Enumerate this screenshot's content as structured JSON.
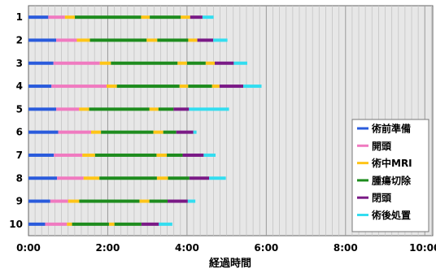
{
  "chart_data": {
    "type": "bar",
    "orientation": "horizontal-stacked",
    "xlabel": "経過時間",
    "xlim_hours": [
      0,
      10.2
    ],
    "x_ticks": [
      "0:00",
      "2:00",
      "4:00",
      "6:00",
      "8:00",
      "10:00"
    ],
    "x_tick_values_hours": [
      0,
      2,
      4,
      6,
      8,
      10
    ],
    "grid": "vertical lines every 10 minutes",
    "legend_position": "bottom-right",
    "categories": [
      "1",
      "2",
      "3",
      "4",
      "5",
      "6",
      "7",
      "8",
      "9",
      "10"
    ],
    "series": [
      {
        "name": "術前準備",
        "color": "#2a5bdc",
        "segments": [
          [
            [
              0.0,
              0.5
            ]
          ],
          [
            [
              0.0,
              0.7
            ]
          ],
          [
            [
              0.0,
              0.63
            ]
          ],
          [
            [
              0.0,
              0.58
            ]
          ],
          [
            [
              0.0,
              0.7
            ]
          ],
          [
            [
              0.0,
              0.75
            ]
          ],
          [
            [
              0.0,
              0.64
            ]
          ],
          [
            [
              0.0,
              0.72
            ]
          ],
          [
            [
              0.0,
              0.55
            ]
          ],
          [
            [
              0.0,
              0.42
            ]
          ]
        ]
      },
      {
        "name": "開頭",
        "color": "#f07ac0",
        "segments": [
          [
            [
              0.5,
              0.92
            ]
          ],
          [
            [
              0.7,
              1.22
            ]
          ],
          [
            [
              0.63,
              1.8
            ]
          ],
          [
            [
              0.58,
              1.97
            ]
          ],
          [
            [
              0.7,
              1.28
            ]
          ],
          [
            [
              0.75,
              1.58
            ]
          ],
          [
            [
              0.64,
              1.36
            ]
          ],
          [
            [
              0.72,
              1.39
            ]
          ],
          [
            [
              0.55,
              1.0
            ]
          ],
          [
            [
              0.42,
              0.97
            ]
          ]
        ]
      },
      {
        "name": "術中MRI",
        "color": "#ffc518",
        "segments": [
          [
            [
              0.92,
              1.17
            ],
            [
              2.84,
              3.06
            ],
            [
              3.84,
              4.08
            ]
          ],
          [
            [
              1.22,
              1.55
            ],
            [
              2.98,
              3.25
            ],
            [
              4.03,
              4.26
            ]
          ],
          [
            [
              1.8,
              2.08
            ],
            [
              3.76,
              4.0
            ],
            [
              4.47,
              4.7
            ]
          ],
          [
            [
              1.97,
              2.23
            ],
            [
              3.81,
              4.03
            ],
            [
              4.63,
              4.82
            ]
          ],
          [
            [
              1.28,
              1.53
            ],
            [
              3.05,
              3.28
            ]
          ],
          [
            [
              1.58,
              1.83
            ],
            [
              3.15,
              3.4
            ]
          ],
          [
            [
              1.36,
              1.68
            ],
            [
              3.23,
              3.49
            ]
          ],
          [
            [
              1.39,
              1.79
            ],
            [
              3.24,
              3.52
            ]
          ],
          [
            [
              1.0,
              1.28
            ],
            [
              2.8,
              3.05
            ]
          ],
          [
            [
              0.97,
              1.1
            ],
            [
              2.03,
              2.17
            ]
          ]
        ]
      },
      {
        "name": "腫瘍切除",
        "color": "#1e8c1e",
        "segments": [
          [
            [
              1.17,
              2.84
            ],
            [
              3.06,
              3.84
            ]
          ],
          [
            [
              1.55,
              2.98
            ],
            [
              3.25,
              4.03
            ]
          ],
          [
            [
              2.08,
              3.76
            ],
            [
              4.0,
              4.47
            ]
          ],
          [
            [
              2.23,
              3.81
            ],
            [
              4.03,
              4.63
            ]
          ],
          [
            [
              1.53,
              3.05
            ],
            [
              3.28,
              3.66
            ]
          ],
          [
            [
              1.83,
              3.15
            ],
            [
              3.4,
              3.73
            ]
          ],
          [
            [
              1.68,
              3.23
            ],
            [
              3.49,
              3.89
            ]
          ],
          [
            [
              1.79,
              3.24
            ],
            [
              3.52,
              4.06
            ]
          ],
          [
            [
              1.28,
              2.8
            ],
            [
              3.05,
              3.51
            ]
          ],
          [
            [
              1.1,
              2.03
            ],
            [
              2.17,
              2.85
            ]
          ]
        ]
      },
      {
        "name": "閉頭",
        "color": "#7a1a86",
        "segments": [
          [
            [
              4.08,
              4.39
            ]
          ],
          [
            [
              4.26,
              4.66
            ]
          ],
          [
            [
              4.7,
              5.18
            ]
          ],
          [
            [
              4.82,
              5.42
            ]
          ],
          [
            [
              3.66,
              4.05
            ]
          ],
          [
            [
              3.73,
              4.16
            ]
          ],
          [
            [
              3.89,
              4.42
            ]
          ],
          [
            [
              4.06,
              4.56
            ]
          ],
          [
            [
              3.51,
              4.02
            ]
          ],
          [
            [
              2.85,
              3.29
            ]
          ]
        ]
      },
      {
        "name": "術後処置",
        "color": "#33ddf0",
        "segments": [
          [
            [
              4.39,
              4.67
            ]
          ],
          [
            [
              4.66,
              5.02
            ]
          ],
          [
            [
              5.18,
              5.52
            ]
          ],
          [
            [
              5.42,
              5.88
            ]
          ],
          [
            [
              4.05,
              5.06
            ]
          ],
          [
            [
              4.16,
              4.24
            ]
          ],
          [
            [
              4.42,
              4.72
            ]
          ],
          [
            [
              4.56,
              4.98
            ]
          ],
          [
            [
              4.02,
              4.21
            ]
          ],
          [
            [
              3.29,
              3.63
            ]
          ]
        ]
      }
    ]
  }
}
